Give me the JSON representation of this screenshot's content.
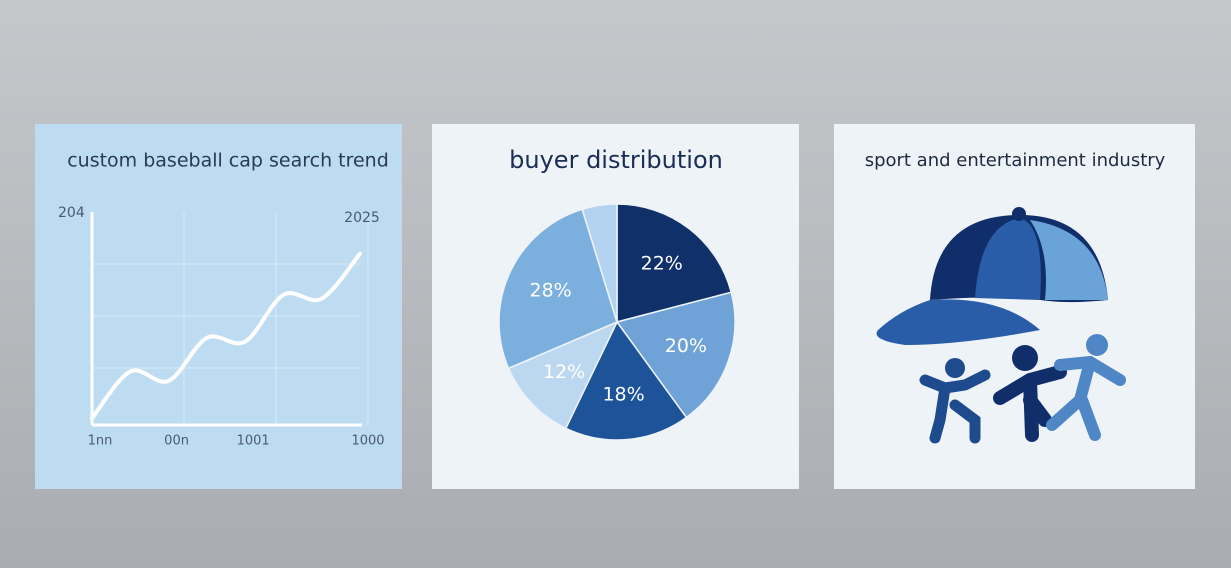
{
  "chart_data": [
    {
      "type": "line",
      "title": "custom baseball cap search trend",
      "categories": [
        "1nn",
        null,
        "00n",
        null,
        "1001",
        null,
        null,
        "1000"
      ],
      "values": [
        2,
        27,
        22,
        45,
        43,
        68,
        66,
        90
      ],
      "color": "#ffffff",
      "ylim": [
        0,
        100
      ],
      "grid": true,
      "annotations": [
        "204",
        "2025"
      ]
    },
    {
      "type": "pie",
      "title": "buyer distribution",
      "values": [
        22,
        20,
        18,
        12,
        28,
        5
      ],
      "value_labels": [
        "22%",
        "20%",
        "18%",
        "12%",
        "28%",
        null
      ],
      "colors": [
        "#10306a",
        "#6fa3d8",
        "#1d5499",
        "#bcd7f0",
        "#7bb0de",
        "#b3d2ef"
      ]
    }
  ],
  "illustration_card": {
    "title": "sport and entertainment industry"
  }
}
